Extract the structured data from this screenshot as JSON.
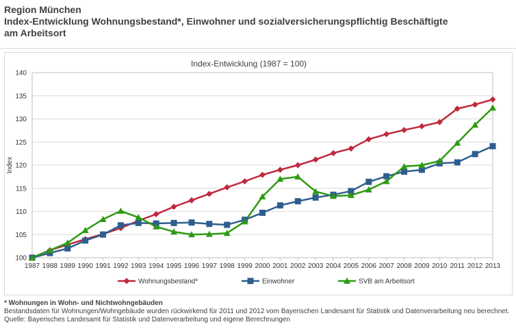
{
  "header": {
    "line1": "Region München",
    "line2": "Index-Entwicklung Wohnungsbestand*, Einwohner und sozialversicherungspflichtig Beschäftigte",
    "line3": "am Arbeitsort"
  },
  "footer": {
    "note": "* Wohnungen in Wohn- und Nichtwohngebäuden",
    "line2": "Bestandsdaten für Wohnungen/Wohngebäude wurden rückwirkend für 2011 und 2012 vom Bayerischen Landesamt für Statistik und Datenverarbeitung neu berechnet.",
    "line3": "Quelle: Bayerisches Landesamt für Statistik und Datenverarbeitung und eigene Berechnungen"
  },
  "colors": {
    "wohnungsbestand": "#c0283c",
    "einwohner": "#2f5e8e",
    "svb": "#2e9a12",
    "grid": "#d9d9d9"
  },
  "chart_data": {
    "type": "line",
    "title": "Index-Entwicklung  (1987 = 100)",
    "xlabel": "",
    "ylabel": "Index",
    "ylim": [
      100,
      140
    ],
    "yticks": [
      100,
      105,
      110,
      115,
      120,
      125,
      130,
      135,
      140
    ],
    "grid": "horizontal",
    "legend_position": "bottom",
    "categories": [
      "1987",
      "1988",
      "1989",
      "1990",
      "1991",
      "1992",
      "1993",
      "1994",
      "1995",
      "1996",
      "1997",
      "1998",
      "1999",
      "2000",
      "2001",
      "2002",
      "2003",
      "2004",
      "2005",
      "2006",
      "2007",
      "2008",
      "2009",
      "2010",
      "2011",
      "2012",
      "2013"
    ],
    "series": [
      {
        "name": "Wohnungsbestand*",
        "marker": "diamond",
        "values": [
          100,
          101.6,
          102.8,
          104.0,
          105.1,
          106.4,
          108.0,
          109.4,
          111.0,
          112.4,
          113.8,
          115.2,
          116.5,
          117.9,
          119.0,
          120.0,
          121.2,
          122.6,
          123.6,
          125.6,
          126.7,
          127.6,
          128.4,
          129.3,
          132.2,
          133.1,
          134.2
        ]
      },
      {
        "name": "Einwohner",
        "marker": "square",
        "values": [
          100,
          101.0,
          102.0,
          103.7,
          105.0,
          107.0,
          107.5,
          107.4,
          107.5,
          107.6,
          107.3,
          107.1,
          108.2,
          109.7,
          111.3,
          112.2,
          113.0,
          113.6,
          114.4,
          116.4,
          117.6,
          118.6,
          119.0,
          120.4,
          120.6,
          122.4,
          124.1
        ]
      },
      {
        "name": "SVB am Arbeitsort",
        "marker": "triangle",
        "values": [
          100,
          101.6,
          103.2,
          105.9,
          108.3,
          110.1,
          108.7,
          106.7,
          105.6,
          105.0,
          105.1,
          105.3,
          107.8,
          113.2,
          117.0,
          117.5,
          114.3,
          113.3,
          113.5,
          114.7,
          116.5,
          119.7,
          120.0,
          120.9,
          124.8,
          128.7,
          132.4
        ]
      }
    ]
  }
}
